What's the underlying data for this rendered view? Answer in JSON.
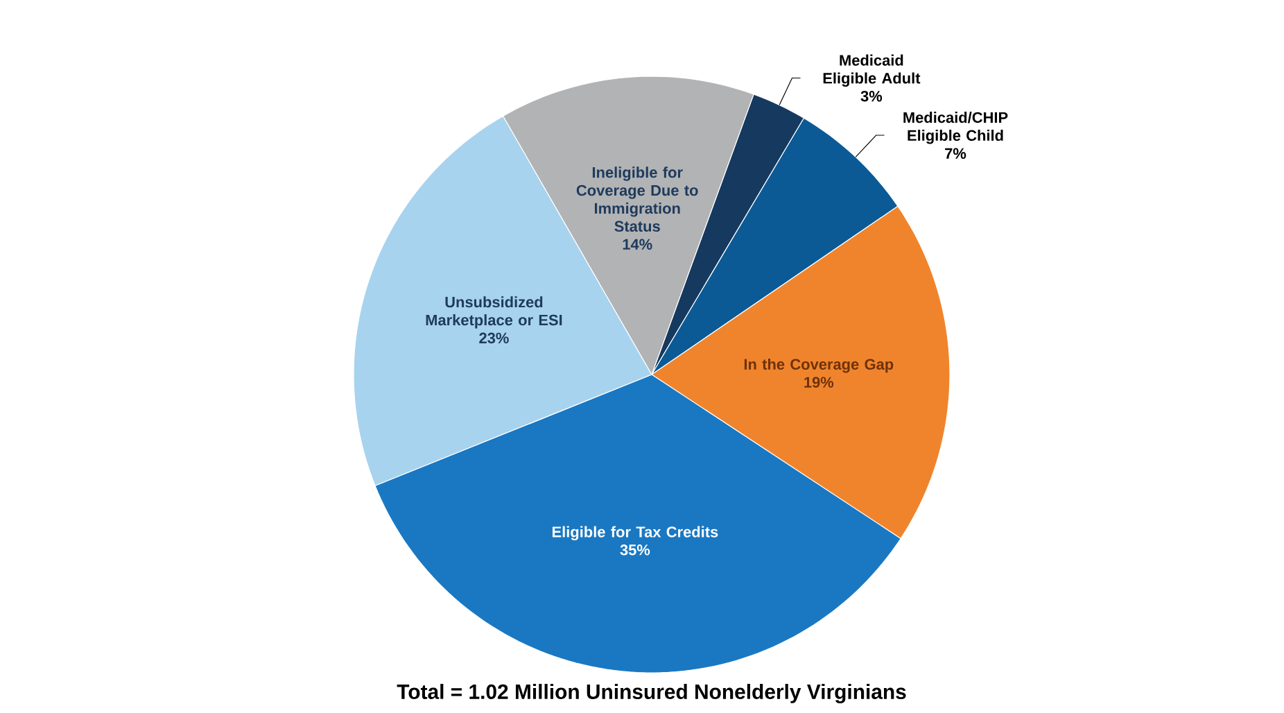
{
  "chart_data": {
    "type": "pie",
    "categories": [
      "Medicaid Eligible Adult",
      "Medicaid/CHIP Eligible Child",
      "In the Coverage Gap",
      "Eligible for Tax Credits",
      "Unsubsidized Marketplace or ESI",
      "Ineligible for Coverage Due to Immigration Status"
    ],
    "values": [
      3,
      7,
      19,
      35,
      23,
      14
    ],
    "value_labels": [
      "3%",
      "7%",
      "19%",
      "35%",
      "23%",
      "14%"
    ],
    "colors": [
      "#163a5f",
      "#0b5a96",
      "#f0842c",
      "#1a78c2",
      "#a7d3ef",
      "#b2b3b5"
    ],
    "annotations": [
      "Total = 1.02 Million Uninsured Nonelderly Virginians"
    ]
  }
}
